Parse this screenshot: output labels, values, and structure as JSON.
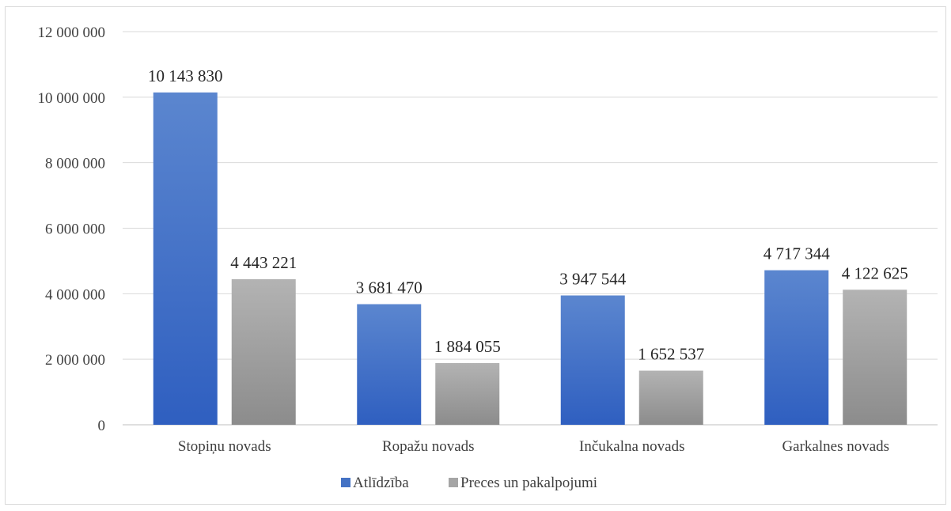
{
  "chart_data": {
    "type": "bar",
    "title": "",
    "xlabel": "",
    "ylabel": "",
    "categories": [
      "Stopiņu novads",
      "Ropažu novads",
      "Inčukalna novads",
      "Garkalnes novads"
    ],
    "series": [
      {
        "name": "Atlīdzība",
        "values": [
          10143830,
          3681470,
          3947544,
          4717344
        ],
        "labels": [
          "10 143 830",
          "3 681 470",
          "3 947 544",
          "4 717 344"
        ],
        "color": "#4472c4"
      },
      {
        "name": "Preces un pakalpojumi",
        "values": [
          4443221,
          1884055,
          1652537,
          4122625
        ],
        "labels": [
          "4 443 221",
          "1 884 055",
          "1 652 537",
          "4 122 625"
        ],
        "color": "#a5a5a5"
      }
    ],
    "ylim": [
      0,
      12000000
    ],
    "yticks": [
      0,
      2000000,
      4000000,
      6000000,
      8000000,
      10000000,
      12000000
    ],
    "ytick_labels": [
      "0",
      "2 000 000",
      "4 000 000",
      "6 000 000",
      "8 000 000",
      "10 000 000",
      "12 000 000"
    ],
    "grid": true,
    "legend_position": "bottom"
  }
}
